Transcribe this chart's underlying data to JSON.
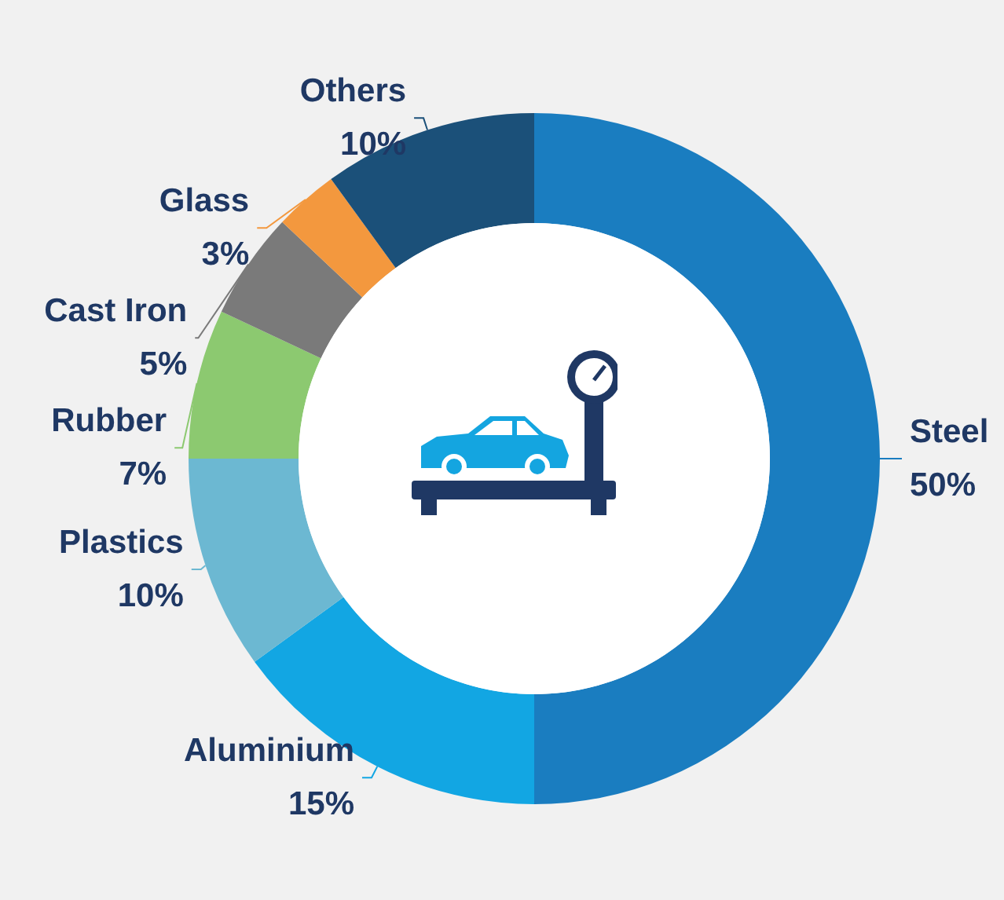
{
  "chart_data": {
    "type": "donut",
    "categories": [
      "Steel",
      "Aluminium",
      "Plastics",
      "Rubber",
      "Cast Iron",
      "Glass",
      "Others"
    ],
    "values": [
      50,
      15,
      10,
      7,
      5,
      3,
      10
    ],
    "colors": [
      "#1a7dc0",
      "#12a6e3",
      "#6cb8d2",
      "#8cc970",
      "#7a7a7a",
      "#f3983e",
      "#1b5079"
    ],
    "value_labels": [
      "50%",
      "15%",
      "10%",
      "7%",
      "5%",
      "3%",
      "10%"
    ]
  }
}
